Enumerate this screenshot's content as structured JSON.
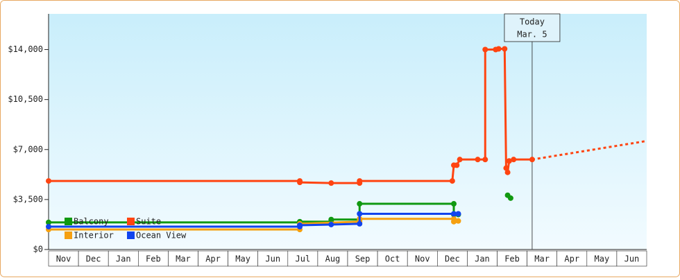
{
  "chart_data": {
    "type": "line",
    "categories": [
      "Nov",
      "Dec",
      "Jan",
      "Feb",
      "Mar",
      "Apr",
      "May",
      "Jun",
      "Jul",
      "Aug",
      "Sep",
      "Oct",
      "Nov",
      "Dec",
      "Jan",
      "Feb",
      "Mar",
      "Apr",
      "May",
      "Jun"
    ],
    "xlim": [
      0,
      20
    ],
    "ylim": [
      0,
      16500
    ],
    "yticks": [
      {
        "value": 0,
        "label": "$0"
      },
      {
        "value": 3500,
        "label": "$3,500"
      },
      {
        "value": 7000,
        "label": "$7,000"
      },
      {
        "value": 10500,
        "label": "$10,500"
      },
      {
        "value": 14000,
        "label": "$14,000"
      }
    ],
    "series": [
      {
        "name": "Balcony",
        "color": "#119911",
        "x": [
          0,
          8.4,
          8.4,
          9.45,
          9.45,
          10.4,
          10.4,
          13.55,
          13.55,
          13.7,
          14.5,
          15.35,
          15.45
        ],
        "values": [
          1900,
          1900,
          1950,
          1950,
          2100,
          2100,
          3200,
          3200,
          2450,
          2450,
          null,
          3800,
          3600
        ]
      },
      {
        "name": "Suite",
        "color": "#ff4411",
        "x": [
          0,
          8.4,
          8.4,
          9.45,
          10.4,
          10.4,
          13.5,
          13.55,
          13.65,
          13.75,
          14.35,
          14.6,
          14.6,
          14.95,
          15.05,
          15.25,
          15.3,
          15.35,
          15.4,
          15.55,
          16.17
        ],
        "values": [
          4800,
          4800,
          4700,
          4650,
          4650,
          4800,
          4800,
          5900,
          5900,
          6300,
          6300,
          6300,
          14000,
          14000,
          14050,
          14050,
          5700,
          5400,
          6200,
          6300,
          6300
        ],
        "forecast": {
          "x": [
            16.17,
            20
          ],
          "values": [
            6300,
            7600
          ]
        }
      },
      {
        "name": "Interior",
        "color": "#f5a010",
        "x": [
          0,
          8.4,
          8.4,
          10.4,
          10.4,
          13.55,
          13.55,
          13.7
        ],
        "values": [
          1400,
          1400,
          1800,
          1950,
          2150,
          2150,
          1950,
          2000
        ]
      },
      {
        "name": "Ocean View",
        "color": "#1144ee",
        "x": [
          0,
          8.4,
          8.4,
          9.45,
          10.4,
          10.4,
          13.55,
          13.7
        ],
        "values": [
          1600,
          1600,
          1700,
          1750,
          1800,
          2500,
          2500,
          2500
        ]
      }
    ],
    "annotation": {
      "x": 16.17,
      "label": [
        "Today",
        "Mar. 5"
      ]
    }
  }
}
